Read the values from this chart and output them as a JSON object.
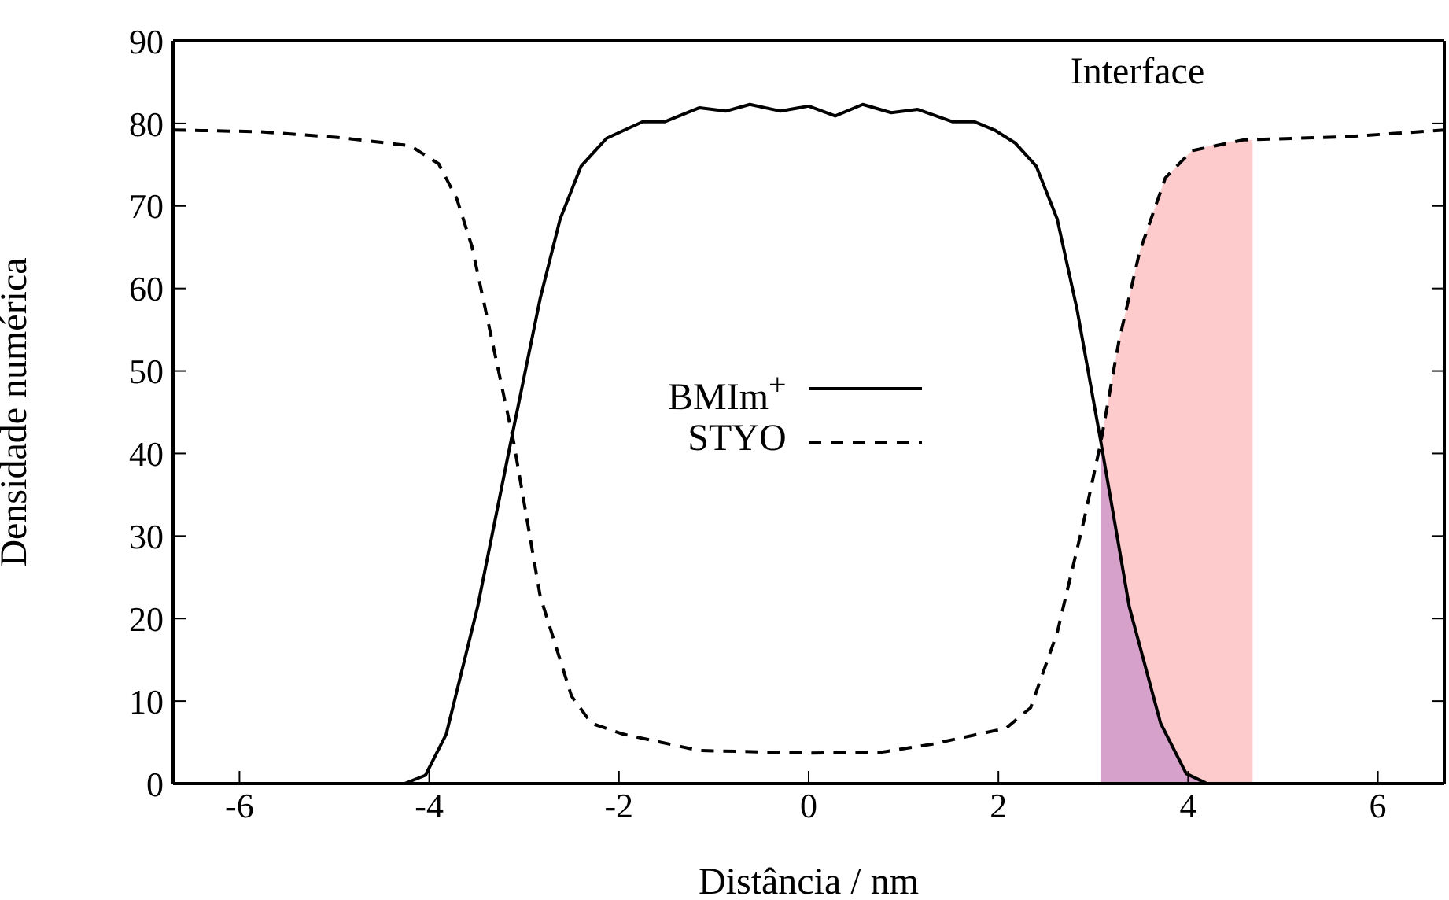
{
  "chart_data": {
    "type": "line",
    "xlabel": "Distância / nm",
    "ylabel": "Densidade numérica",
    "xlim": [
      -6.7,
      6.7
    ],
    "xticks": [
      -6,
      -4,
      -2,
      0,
      2,
      4,
      6
    ],
    "ylim": [
      0,
      90
    ],
    "yticks": [
      0,
      10,
      20,
      30,
      40,
      50,
      60,
      70,
      80,
      90
    ],
    "legend": "center",
    "annotations": [
      "Interface"
    ],
    "series": [
      {
        "type": "area",
        "color": "#fdcbcb",
        "x": [
          3.08,
          3.27,
          3.49,
          3.76,
          4.04,
          4.3,
          4.58,
          4.68
        ],
        "values": [
          41.4,
          53.6,
          64.5,
          73.4,
          76.7,
          77.5,
          78.0,
          78.0
        ]
      },
      {
        "type": "area",
        "color": "#d6a1ca",
        "x": [
          3.08,
          3.38,
          3.71,
          3.98,
          4.2,
          4.4
        ],
        "values": [
          41.4,
          21.4,
          7.3,
          1.2,
          0,
          0
        ]
      },
      {
        "name": "BMIm$^{+}$",
        "color": "#000000",
        "line_style": "solid",
        "x": [
          -6.7,
          -4.26,
          -4.04,
          -3.82,
          -3.49,
          -3.14,
          -2.83,
          -2.62,
          -2.4,
          -2.13,
          -1.75,
          -1.52,
          -1.15,
          -0.87,
          -0.62,
          -0.3,
          0,
          0.28,
          0.57,
          0.87,
          1.15,
          1.52,
          1.75,
          1.96,
          2.18,
          2.4,
          2.62,
          2.83,
          3.08,
          3.38,
          3.71,
          3.98,
          4.2,
          6.7
        ],
        "values": [
          0,
          0,
          1,
          6,
          21.4,
          41.4,
          58.8,
          68.4,
          74.8,
          78.2,
          80.2,
          80.2,
          81.9,
          81.5,
          82.3,
          81.5,
          82.1,
          80.9,
          82.3,
          81.3,
          81.7,
          80.2,
          80.2,
          79.2,
          77.6,
          74.8,
          68.4,
          57.4,
          41.4,
          21.4,
          7.3,
          1.2,
          0,
          0
        ]
      },
      {
        "name": "STYO",
        "color": "#000000",
        "line_style": "dashed",
        "x": [
          -6.7,
          -5.78,
          -4.96,
          -4.2,
          -3.9,
          -3.71,
          -3.55,
          -3.36,
          -3.11,
          -2.83,
          -2.5,
          -2.29,
          -1.96,
          -1.15,
          0,
          0.77,
          1.31,
          2.08,
          2.34,
          2.62,
          2.9,
          3.08,
          3.27,
          3.49,
          3.76,
          4.04,
          4.58,
          5.68,
          6.7
        ],
        "values": [
          79.2,
          79,
          78.3,
          77.3,
          75.1,
          70.9,
          65.1,
          54.9,
          41.4,
          22.7,
          10.6,
          7.3,
          6,
          4,
          3.7,
          3.8,
          4.8,
          6.7,
          9.2,
          18.3,
          31.8,
          41.4,
          53.6,
          64.5,
          73.4,
          76.7,
          78,
          78.4,
          79.2
        ]
      }
    ]
  }
}
